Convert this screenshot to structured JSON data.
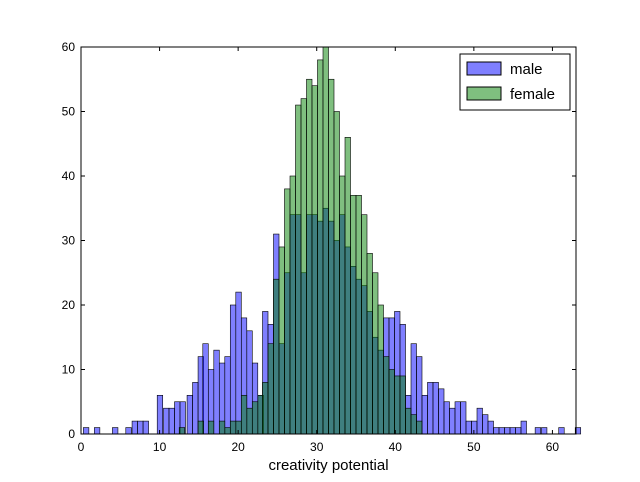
{
  "chart_data": {
    "type": "histogram",
    "title": "",
    "xlabel": "creativity potential",
    "ylabel": "",
    "xlim": [
      0,
      63
    ],
    "ylim": [
      0,
      60
    ],
    "xticks": [
      0,
      10,
      20,
      30,
      40,
      50,
      60
    ],
    "yticks": [
      0,
      10,
      20,
      30,
      40,
      50,
      60
    ],
    "bin_width": 0.7,
    "grid": false,
    "legend_position": "top-right",
    "series": [
      {
        "name": "male",
        "color": "#0000ff",
        "alpha": 0.5,
        "bins": [
          [
            0.3,
            1
          ],
          [
            1.7,
            1
          ],
          [
            4.0,
            1
          ],
          [
            5.7,
            1
          ],
          [
            6.5,
            2
          ],
          [
            7.2,
            2
          ],
          [
            7.9,
            2
          ],
          [
            9.7,
            6
          ],
          [
            10.5,
            4
          ],
          [
            11.2,
            4
          ],
          [
            11.9,
            5
          ],
          [
            12.6,
            5
          ],
          [
            13.5,
            6
          ],
          [
            14.2,
            8
          ],
          [
            14.9,
            12
          ],
          [
            15.5,
            14
          ],
          [
            16.2,
            10
          ],
          [
            16.9,
            13
          ],
          [
            17.6,
            11
          ],
          [
            18.3,
            12
          ],
          [
            19.0,
            20
          ],
          [
            19.7,
            22
          ],
          [
            20.4,
            18
          ],
          [
            21.1,
            16
          ],
          [
            21.8,
            11
          ],
          [
            22.5,
            6
          ],
          [
            23.1,
            19
          ],
          [
            23.8,
            17
          ],
          [
            24.5,
            31
          ],
          [
            25.2,
            14
          ],
          [
            25.9,
            25
          ],
          [
            26.6,
            34
          ],
          [
            27.3,
            34
          ],
          [
            28.0,
            25
          ],
          [
            28.7,
            34
          ],
          [
            29.4,
            34
          ],
          [
            30.1,
            33
          ],
          [
            30.8,
            35
          ],
          [
            31.5,
            33
          ],
          [
            32.2,
            30
          ],
          [
            32.9,
            34
          ],
          [
            33.6,
            29
          ],
          [
            34.3,
            26
          ],
          [
            35.0,
            24
          ],
          [
            35.7,
            23
          ],
          [
            36.4,
            19
          ],
          [
            37.1,
            15
          ],
          [
            37.8,
            13
          ],
          [
            38.5,
            18
          ],
          [
            39.2,
            18
          ],
          [
            39.9,
            19
          ],
          [
            40.6,
            17
          ],
          [
            41.3,
            6
          ],
          [
            42.0,
            14
          ],
          [
            42.7,
            12
          ],
          [
            43.4,
            6
          ],
          [
            44.1,
            8
          ],
          [
            44.8,
            8
          ],
          [
            45.5,
            7
          ],
          [
            46.2,
            5
          ],
          [
            46.9,
            4
          ],
          [
            47.6,
            5
          ],
          [
            48.3,
            5
          ],
          [
            49.0,
            2
          ],
          [
            49.7,
            2
          ],
          [
            50.4,
            4
          ],
          [
            51.1,
            3
          ],
          [
            51.8,
            2
          ],
          [
            52.5,
            1
          ],
          [
            53.2,
            1
          ],
          [
            53.9,
            1
          ],
          [
            54.6,
            1
          ],
          [
            55.3,
            1
          ],
          [
            56.0,
            2
          ],
          [
            57.8,
            1
          ],
          [
            58.6,
            1
          ],
          [
            60.8,
            1
          ],
          [
            62.9,
            1
          ]
        ]
      },
      {
        "name": "female",
        "color": "#008000",
        "alpha": 0.5,
        "bins": [
          [
            12.5,
            1
          ],
          [
            14.9,
            2
          ],
          [
            16.2,
            2
          ],
          [
            17.6,
            2
          ],
          [
            18.3,
            1
          ],
          [
            19.0,
            2
          ],
          [
            19.7,
            2
          ],
          [
            20.4,
            6
          ],
          [
            21.1,
            4
          ],
          [
            21.8,
            5
          ],
          [
            22.5,
            6
          ],
          [
            23.1,
            8
          ],
          [
            23.8,
            14
          ],
          [
            24.5,
            24
          ],
          [
            25.2,
            29
          ],
          [
            25.9,
            38
          ],
          [
            26.6,
            40
          ],
          [
            27.3,
            51
          ],
          [
            28.0,
            52
          ],
          [
            28.7,
            55
          ],
          [
            29.4,
            54
          ],
          [
            30.1,
            58
          ],
          [
            30.8,
            61
          ],
          [
            31.5,
            55
          ],
          [
            32.2,
            50
          ],
          [
            32.9,
            40
          ],
          [
            33.6,
            46
          ],
          [
            34.3,
            37
          ],
          [
            35.0,
            37
          ],
          [
            35.7,
            34
          ],
          [
            36.4,
            28
          ],
          [
            37.1,
            25
          ],
          [
            37.8,
            20
          ],
          [
            38.5,
            12
          ],
          [
            39.2,
            10
          ],
          [
            39.9,
            9
          ],
          [
            40.6,
            9
          ],
          [
            41.3,
            4
          ],
          [
            42.0,
            3
          ],
          [
            42.7,
            2
          ]
        ]
      }
    ]
  }
}
